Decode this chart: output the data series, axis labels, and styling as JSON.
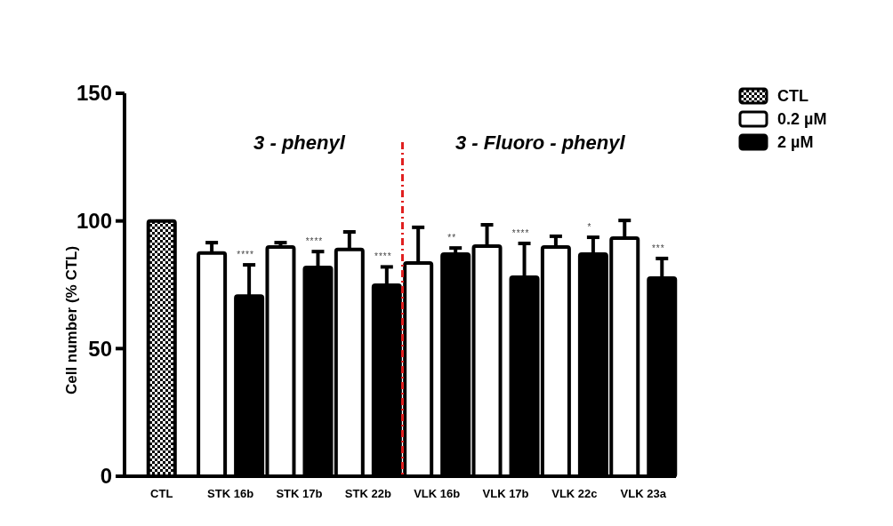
{
  "chart_data": {
    "type": "bar",
    "ylabel": "Cell number (% CTL)",
    "categories": [
      "CTL",
      "STK 16b",
      "STK 17b",
      "STK 22b",
      "VLK 16b",
      "VLK 17b",
      "VLK 22c",
      "VLK 23a"
    ],
    "series": [
      {
        "name": "CTL",
        "color": "#000000",
        "values": [
          100,
          null,
          null,
          null,
          null,
          null,
          null,
          null
        ]
      },
      {
        "name": "0.2 µM",
        "color": "#ffffff",
        "values": [
          null,
          87.4,
          89.8,
          88.8,
          83.5,
          90.1,
          89.8,
          93.3
        ],
        "errors": [
          null,
          [
            87.4,
            91.5
          ],
          [
            89.8,
            91.5
          ],
          [
            88.8,
            95.7
          ],
          [
            83.5,
            97.5
          ],
          [
            90.1,
            98.5
          ],
          [
            89.8,
            94
          ],
          [
            93.3,
            100.2
          ]
        ]
      },
      {
        "name": "2 µM",
        "color": "#000000",
        "values": [
          null,
          70.6,
          81.8,
          74.8,
          87,
          78,
          87,
          77.6
        ],
        "errors": [
          null,
          [
            70.6,
            82.8
          ],
          [
            81.8,
            88
          ],
          [
            74.8,
            82
          ],
          [
            87,
            89.4
          ],
          [
            78,
            91.2
          ],
          [
            87,
            93.6
          ],
          [
            77.6,
            85.3
          ]
        ]
      }
    ],
    "ylim": [
      0,
      150
    ],
    "yticks": [
      0,
      50,
      100,
      150
    ],
    "grid": false,
    "legend": "top right",
    "annotations": [
      "3 - phenyl",
      "3 - Fluoro - phenyl",
      "****",
      "****",
      "****",
      "**",
      "****",
      "*",
      "***"
    ]
  }
}
